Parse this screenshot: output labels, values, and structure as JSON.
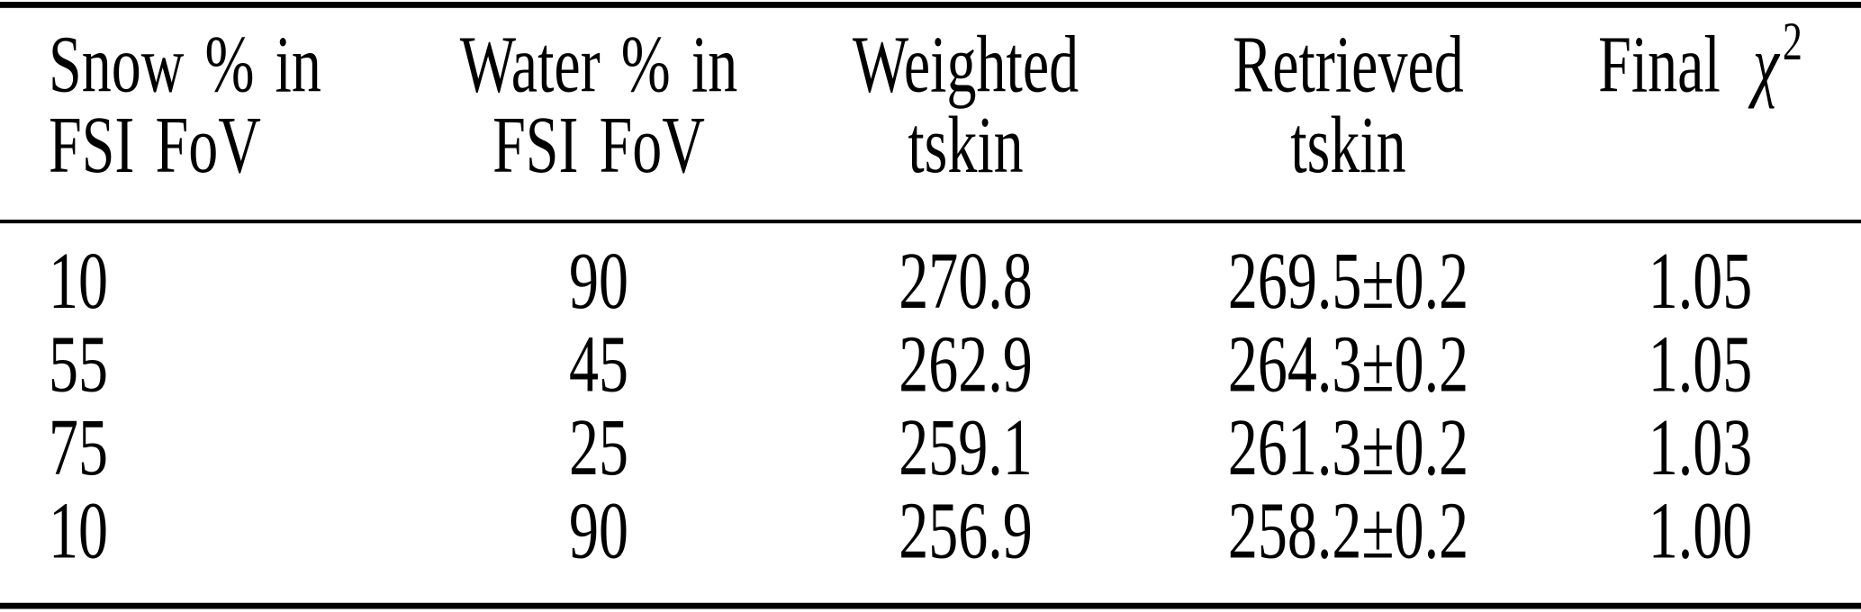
{
  "table": {
    "headers": [
      {
        "line1": "Snow % in",
        "line2": "FSI FoV"
      },
      {
        "line1": "Water % in",
        "line2": "FSI FoV"
      },
      {
        "line1": "Weighted",
        "line2": "tskin"
      },
      {
        "line1": "Retrieved",
        "line2": "tskin"
      },
      {
        "prefix": "Final",
        "symbol": "χ",
        "superscript": "2"
      }
    ],
    "rows": [
      [
        "10",
        "90",
        "270.8",
        "269.5±0.2",
        "1.05"
      ],
      [
        "55",
        "45",
        "262.9",
        "264.3±0.2",
        "1.05"
      ],
      [
        "75",
        "25",
        "259.1",
        "261.3±0.2",
        "1.03"
      ],
      [
        "10",
        "90",
        "256.9",
        "258.2±0.2",
        "1.00"
      ]
    ]
  },
  "colors": {
    "text": "#000000",
    "rules": "#000000",
    "background": "#ffffff"
  },
  "chart_data": {
    "type": "table",
    "columns": [
      "Snow % in FSI FoV",
      "Water % in FSI FoV",
      "Weighted tskin",
      "Retrieved tskin",
      "Final χ2"
    ],
    "rows": [
      [
        "10",
        "90",
        "270.8",
        "269.5±0.2",
        "1.05"
      ],
      [
        "55",
        "45",
        "262.9",
        "264.3±0.2",
        "1.05"
      ],
      [
        "75",
        "25",
        "259.1",
        "261.3±0.2",
        "1.03"
      ],
      [
        "10",
        "90",
        "256.9",
        "258.2±0.2",
        "1.00"
      ]
    ]
  }
}
